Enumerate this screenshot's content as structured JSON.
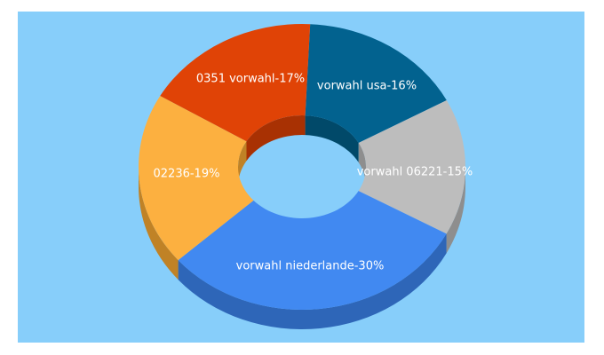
{
  "colors": {
    "background": "#87CEFA",
    "text": "#FFFFFF"
  },
  "chart_data": {
    "type": "pie",
    "style": "3d-donut",
    "slices": [
      {
        "label": "vorwahl usa-16%",
        "value": 16,
        "color": "#02628F",
        "side": "#014969"
      },
      {
        "label": "vorwahl 06221-15%",
        "value": 15,
        "color": "#BDBDBD",
        "side": "#8E8E8E"
      },
      {
        "label": "vorwahl niederlande-30%",
        "value": 30,
        "color": "#4189F1",
        "side": "#2E66B8"
      },
      {
        "label": "02236-19%",
        "value": 19,
        "color": "#FCB040",
        "side": "#C08226"
      },
      {
        "label": "0351 vorwahl-17%",
        "value": 17,
        "color": "#E04306",
        "side": "#A83103"
      }
    ]
  }
}
